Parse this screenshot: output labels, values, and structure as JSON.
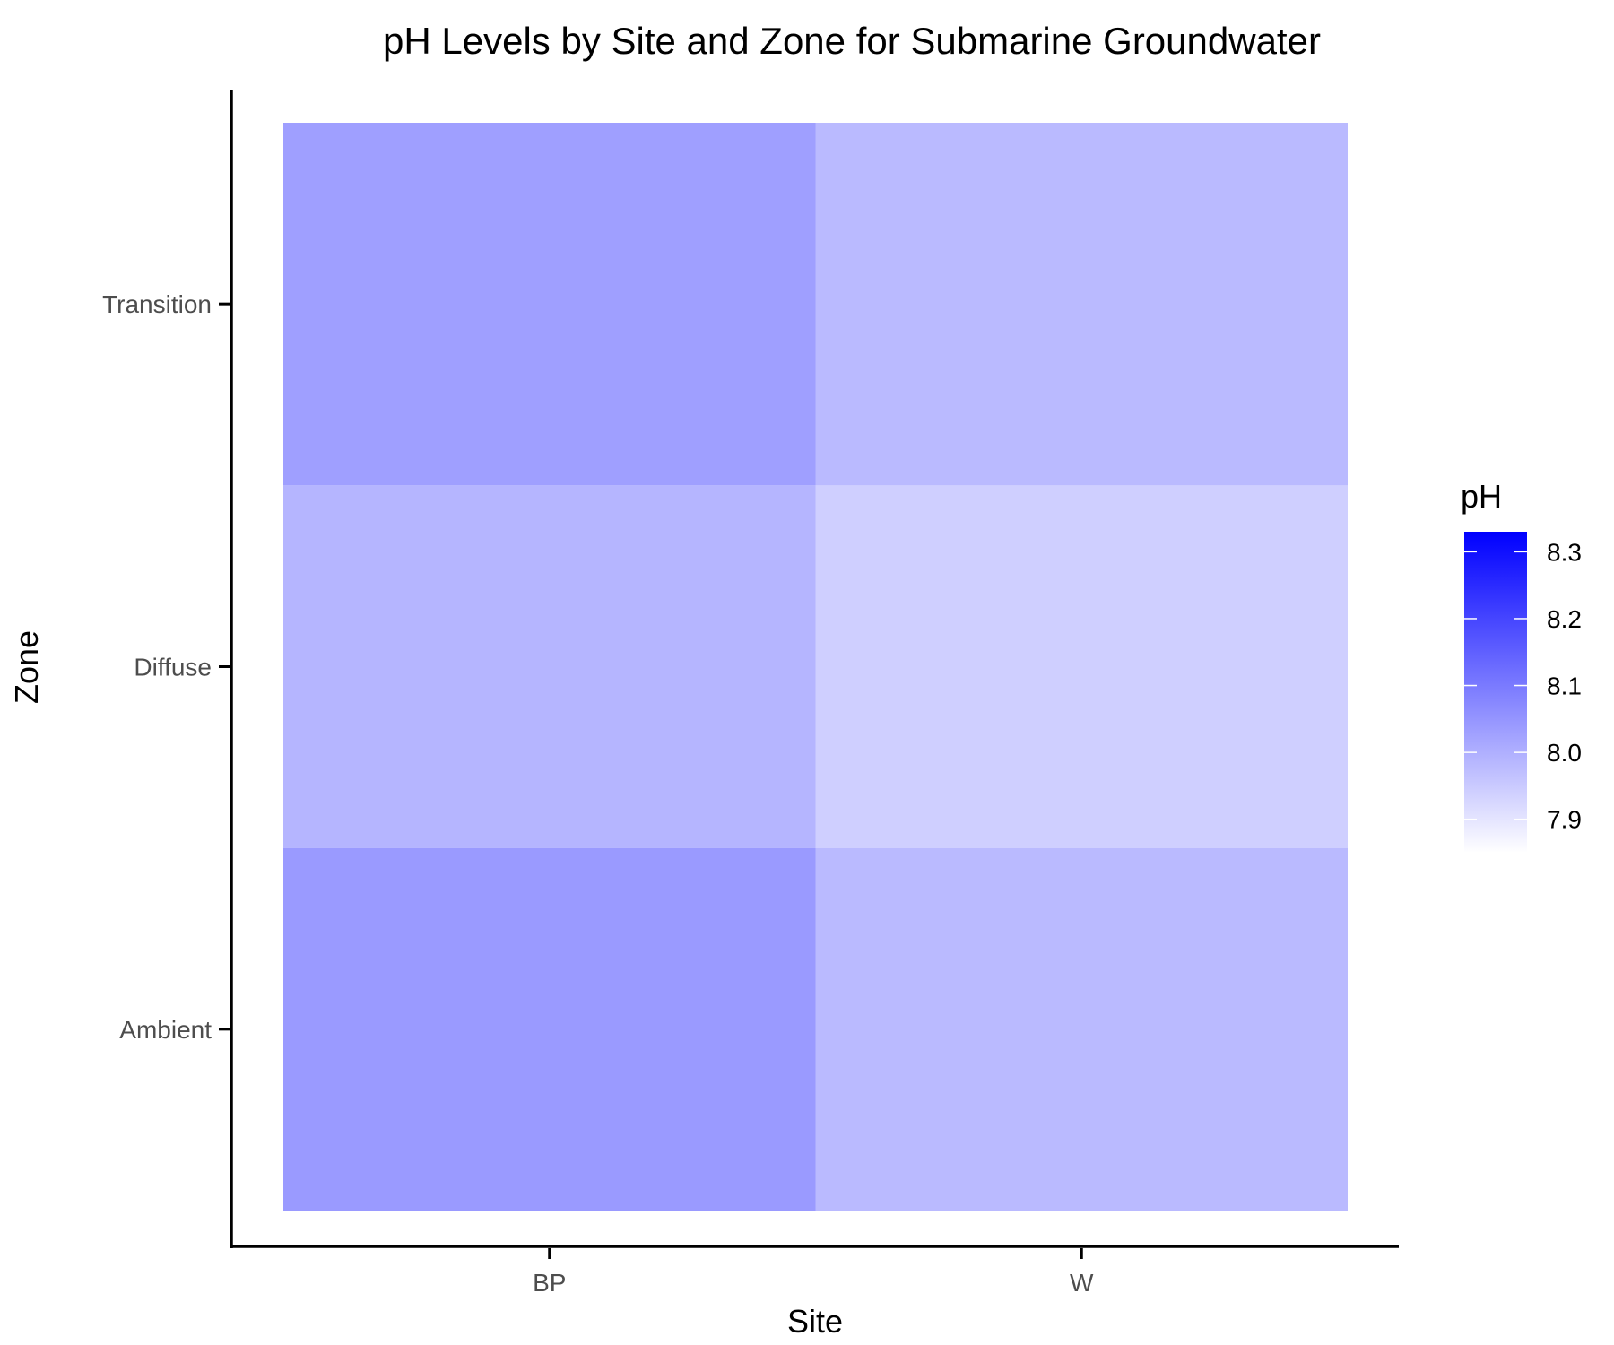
{
  "chart_data": {
    "type": "heatmap",
    "title": "pH Levels by Site and Zone for Submarine Groundwater",
    "xlabel": "Site",
    "ylabel": "Zone",
    "x_categories": [
      "BP",
      "W"
    ],
    "y_categories": [
      "Ambient",
      "Diffuse",
      "Transition"
    ],
    "values": [
      {
        "site": "BP",
        "zone": "Ambient",
        "pH": 8.04
      },
      {
        "site": "BP",
        "zone": "Diffuse",
        "pH": 7.99
      },
      {
        "site": "BP",
        "zone": "Transition",
        "pH": 8.03
      },
      {
        "site": "W",
        "zone": "Ambient",
        "pH": 7.98
      },
      {
        "site": "W",
        "zone": "Diffuse",
        "pH": 7.94
      },
      {
        "site": "W",
        "zone": "Transition",
        "pH": 7.98
      }
    ],
    "legend": {
      "title": "pH",
      "position": "right",
      "range": [
        7.85,
        8.33
      ],
      "ticks": [
        8.3,
        8.2,
        8.1,
        8.0,
        7.9
      ],
      "tick_labels": [
        "8.3",
        "8.2",
        "8.1",
        "8.0",
        "7.9"
      ],
      "color_low": "#ffffff",
      "color_high": "#0000ff"
    },
    "grid": false
  }
}
